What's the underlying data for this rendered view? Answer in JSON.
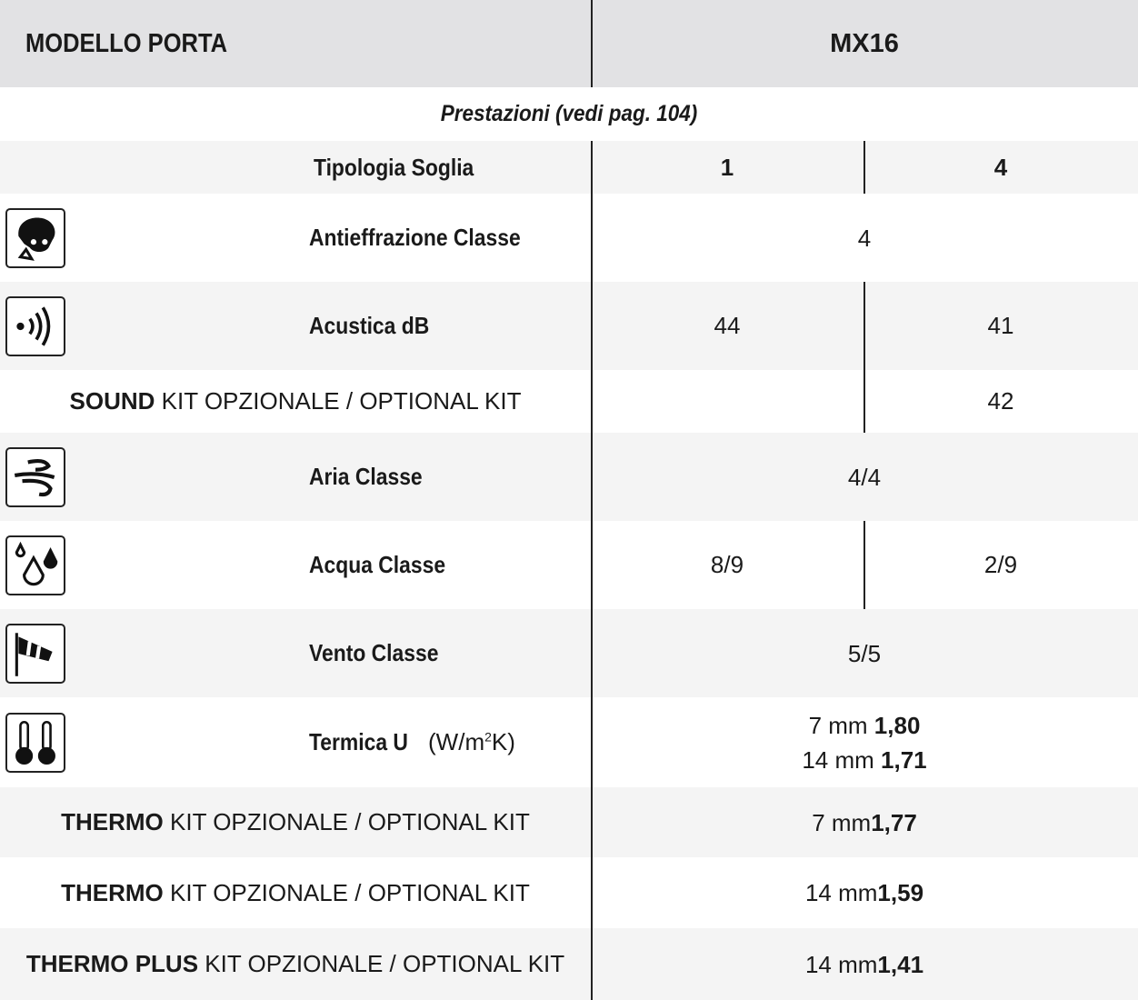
{
  "header": {
    "model_label": "MODELLO PORTA",
    "model_value": "MX16"
  },
  "section_title": "Prestazioni (vedi pag. 104)",
  "threshold": {
    "label": "Tipologia Soglia",
    "col1": "1",
    "col2": "4"
  },
  "rows": {
    "antieffrazione": {
      "label": "Antieffrazione Classe",
      "icon": "burglar-icon",
      "value": "4"
    },
    "acustica": {
      "label": "Acustica dB",
      "icon": "sound-waves-icon",
      "col1": "44",
      "col2": "41"
    },
    "sound_kit": {
      "bold": "SOUND",
      "rest": " KIT OPZIONALE / OPTIONAL KIT",
      "col2": "42"
    },
    "aria": {
      "label": "Aria Classe",
      "icon": "air-wind-icon",
      "value": "4/4"
    },
    "acqua": {
      "label": "Acqua Classe",
      "icon": "water-drops-icon",
      "col1": "8/9",
      "col2": "2/9"
    },
    "vento": {
      "label": "Vento Classe",
      "icon": "windsock-icon",
      "value": "5/5"
    },
    "termica": {
      "label": "Termica U",
      "unit_pre": " (W/m",
      "unit_sup": "2",
      "unit_post": "K)",
      "icon": "thermometers-icon",
      "line1_pre": "7 mm ",
      "line1_val": "1,80",
      "line2_pre": "14 mm ",
      "line2_val": "1,71"
    },
    "thermo1": {
      "bold": "THERMO",
      "rest": " KIT OPZIONALE / OPTIONAL KIT",
      "pre": "7 mm ",
      "val": "1,77"
    },
    "thermo2": {
      "bold": "THERMO",
      "rest": " KIT OPZIONALE / OPTIONAL KIT",
      "pre": "14 mm ",
      "val": "1,59"
    },
    "thermo_plus": {
      "bold": "THERMO PLUS",
      "rest": " KIT OPZIONALE / OPTIONAL KIT",
      "pre": "14 mm ",
      "val": "1,41"
    }
  }
}
